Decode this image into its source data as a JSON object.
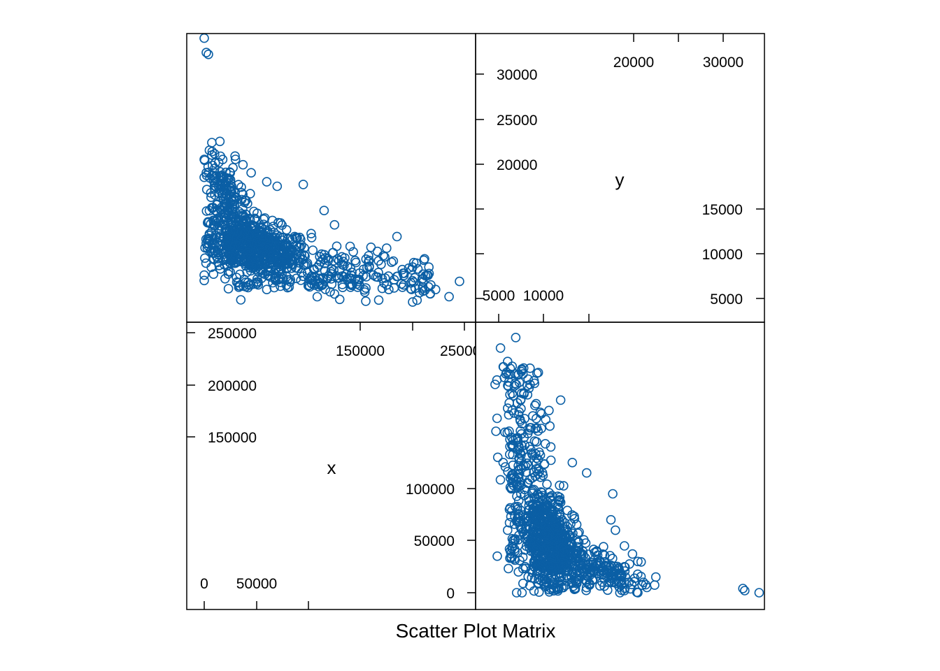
{
  "caption": "Scatter Plot Matrix",
  "colors": {
    "points": "#0b5fa5",
    "frame": "#000000"
  },
  "chart_data": {
    "type": "scatter",
    "variables": [
      "x",
      "y"
    ],
    "x_range": [
      -15000,
      260000
    ],
    "y_range": [
      3000,
      34700
    ],
    "marker": "open-circle",
    "panels": {
      "y_vs_x": "upper-left",
      "x_vs_y": "lower-right",
      "label_y": "upper-right",
      "label_x": "lower-left"
    },
    "ticks": {
      "y_left": [
        "5000",
        "10000",
        "15000",
        "20000",
        "25000",
        "30000"
      ],
      "x_left": [
        "0",
        "50000",
        "100000",
        "150000",
        "200000",
        "250000"
      ]
    },
    "anchor_points": [
      [
        0,
        34000
      ],
      [
        2000,
        32400
      ],
      [
        4000,
        32200
      ],
      [
        0,
        20500
      ],
      [
        2000,
        19000
      ],
      [
        0,
        18500
      ],
      [
        5000,
        21500
      ],
      [
        15000,
        22500
      ],
      [
        10000,
        19500
      ],
      [
        25000,
        19000
      ],
      [
        30000,
        20500
      ],
      [
        45000,
        19000
      ],
      [
        60000,
        18000
      ],
      [
        70000,
        17500
      ],
      [
        95000,
        17700
      ],
      [
        115000,
        14800
      ],
      [
        125000,
        13200
      ],
      [
        140000,
        10800
      ],
      [
        160000,
        10700
      ],
      [
        175000,
        10600
      ],
      [
        185000,
        11900
      ],
      [
        200000,
        8500
      ],
      [
        210000,
        7700
      ],
      [
        222000,
        6000
      ],
      [
        235000,
        5200
      ],
      [
        245000,
        6900
      ],
      [
        0,
        7000
      ],
      [
        0,
        7600
      ],
      [
        20000,
        7200
      ],
      [
        40000,
        6300
      ],
      [
        60000,
        6000
      ],
      [
        80000,
        6200
      ],
      [
        110000,
        6300
      ],
      [
        125000,
        5500
      ],
      [
        130000,
        4900
      ],
      [
        155000,
        4700
      ],
      [
        200000,
        4600
      ]
    ]
  }
}
